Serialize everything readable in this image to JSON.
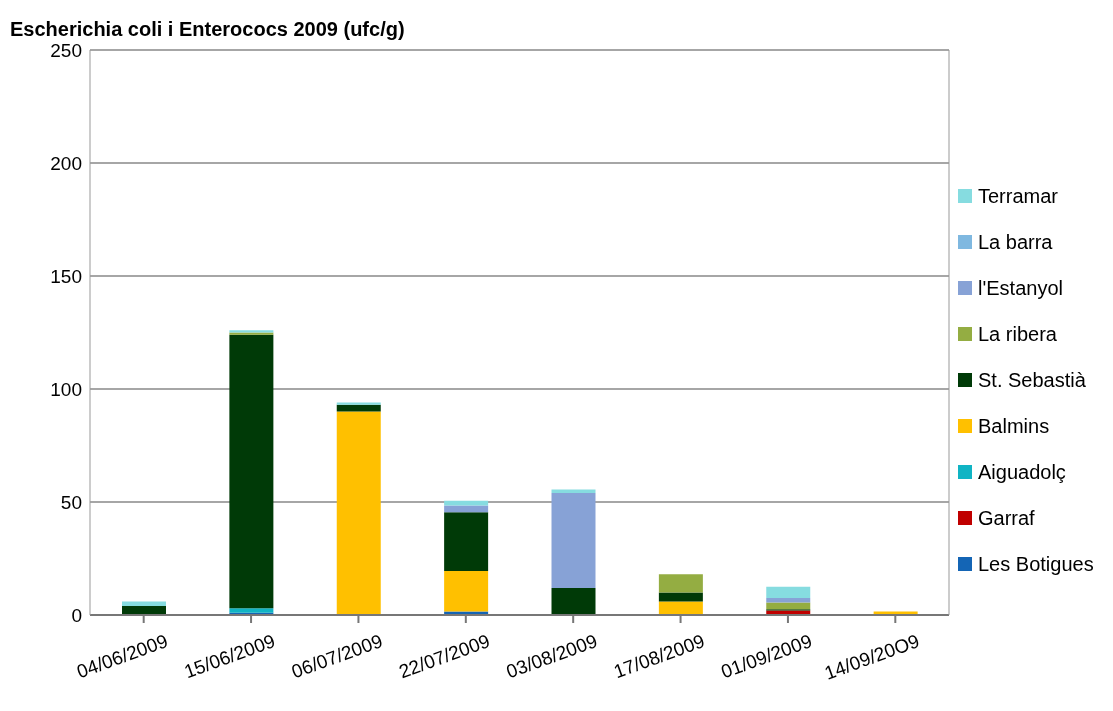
{
  "chart_data": {
    "type": "bar",
    "title": "Escherichia coli i Enterococs 2009 (ufc/g)",
    "stacked": true,
    "categories": [
      "04/06/2009",
      "15/06/2009",
      "06/07/2009",
      "22/07/2009",
      "03/08/2009",
      "17/08/2009",
      "01/09/2009",
      "14/09/20O9"
    ],
    "series": [
      {
        "name": "Les Botigues",
        "color": "#1465b5",
        "values": [
          0,
          1,
          0,
          1.5,
          0,
          0,
          0,
          0
        ]
      },
      {
        "name": "Garraf",
        "color": "#c00000",
        "values": [
          0,
          0,
          0,
          0,
          0,
          0,
          2,
          0
        ]
      },
      {
        "name": "Aiguadolç",
        "color": "#10b4c4",
        "values": [
          0,
          2,
          0,
          0,
          0,
          0,
          0,
          0
        ]
      },
      {
        "name": "Balmins",
        "color": "#ffc000",
        "values": [
          0,
          0,
          90,
          18,
          0,
          6,
          0,
          1.5
        ]
      },
      {
        "name": "St. Sebastià",
        "color": "#003a07",
        "values": [
          4,
          121,
          3,
          26,
          12,
          4,
          0.5,
          0
        ]
      },
      {
        "name": "La ribera",
        "color": "#94ad42",
        "values": [
          0,
          1,
          0,
          0,
          0,
          8,
          3,
          0
        ]
      },
      {
        "name": "l'Estanyol",
        "color": "#87a2d6",
        "values": [
          0,
          0,
          0,
          3,
          42,
          0,
          2,
          0
        ]
      },
      {
        "name": "La barra",
        "color": "#7fb8e0",
        "values": [
          0,
          0,
          0,
          0,
          0,
          0,
          0,
          0
        ]
      },
      {
        "name": "Terramar",
        "color": "#86dce0",
        "values": [
          2,
          1,
          1,
          2,
          1.5,
          0,
          5,
          0
        ]
      }
    ],
    "ylim": [
      0,
      250
    ],
    "yticks": [
      0,
      50,
      100,
      150,
      200,
      250
    ],
    "grid": "y",
    "legend": "right"
  }
}
